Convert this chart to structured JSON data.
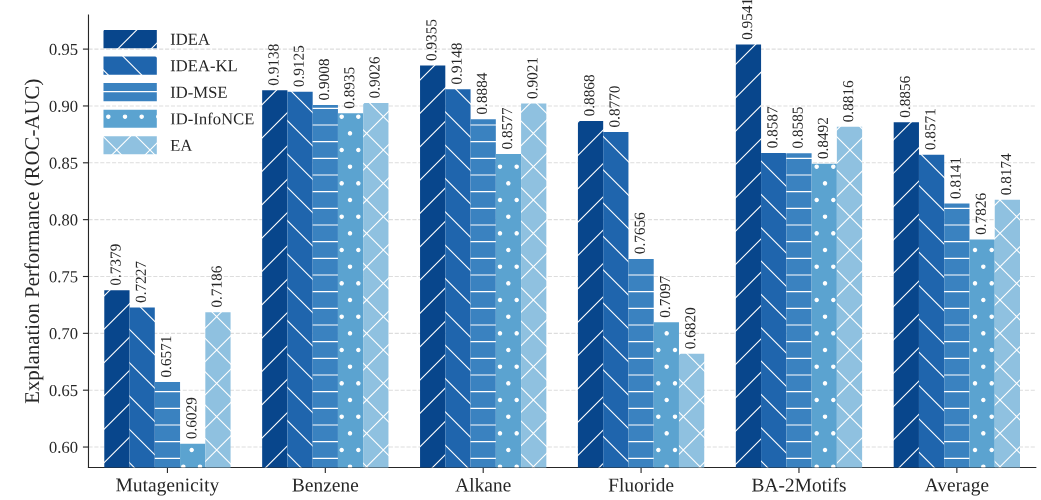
{
  "chart_data": {
    "type": "bar",
    "ylabel": "Explanation Performance (ROC-AUC)",
    "categories": [
      "Mutagenicity",
      "Benzene",
      "Alkane",
      "Fluoride",
      "BA-2Motifs",
      "Average"
    ],
    "series": [
      {
        "name": "IDEA",
        "color": "#08468c",
        "values": [
          0.7379,
          0.9138,
          0.9355,
          0.8868,
          0.9541,
          0.8856
        ],
        "value_labels": [
          "0.7379",
          "0.9138",
          "0.9355",
          "0.8868",
          "0.9541",
          "0.8856"
        ]
      },
      {
        "name": "IDEA-KL",
        "color": "#1f65ad",
        "values": [
          0.7227,
          0.9125,
          0.9148,
          0.877,
          0.8587,
          0.8571
        ],
        "value_labels": [
          "0.7227",
          "0.9125",
          "0.9148",
          "0.8770",
          "0.8587",
          "0.8571"
        ]
      },
      {
        "name": "ID-MSE",
        "color": "#3a82c0",
        "values": [
          0.6571,
          0.9008,
          0.8884,
          0.7656,
          0.8585,
          0.8141
        ],
        "value_labels": [
          "0.6571",
          "0.9008",
          "0.8884",
          "0.7656",
          "0.8585",
          "0.8141"
        ]
      },
      {
        "name": "ID-InfoNCE",
        "color": "#5ba3d0",
        "values": [
          0.6029,
          0.8935,
          0.8577,
          0.7097,
          0.8492,
          0.7826
        ],
        "value_labels": [
          "0.6029",
          "0.8935",
          "0.8577",
          "0.7097",
          "0.8492",
          "0.7826"
        ]
      },
      {
        "name": "EA",
        "color": "#8fc1e0",
        "values": [
          0.7186,
          0.9026,
          0.9021,
          0.682,
          0.8816,
          0.8174
        ],
        "value_labels": [
          "0.7186",
          "0.9026",
          "0.9021",
          "0.6820",
          "0.8816",
          "0.8174"
        ]
      }
    ],
    "ylim": [
      0.582,
      0.98
    ],
    "yticks": [
      "0.60",
      "0.65",
      "0.70",
      "0.75",
      "0.80",
      "0.85",
      "0.90",
      "0.95"
    ],
    "grid": "y",
    "legend": "top left"
  }
}
